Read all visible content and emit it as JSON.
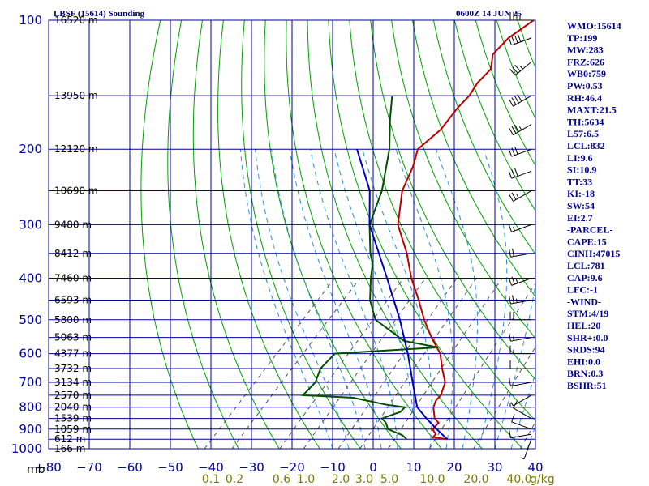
{
  "title_left": "LBSF (15614) Sounding",
  "title_right": "0600Z 14 JUN 25",
  "pressure_unit": "mb",
  "mixing_ratio_unit": "g/kg",
  "colors": {
    "grid": "#0000a0",
    "dry_adiabat": "#00a000",
    "moist_adiabat": "#2a8fd0",
    "mixing_ratio": "#505050",
    "temperature": "#c00000",
    "dewpoint": "#005000",
    "parcel": "#0000c0",
    "wind_barb": "#000000",
    "index_text": "#000090"
  },
  "chart_data": {
    "type": "line",
    "subtype": "skew-t log-p sounding",
    "title": "LBSF (15614) Sounding",
    "time": "0600Z 14 JUN 25",
    "y_axis": {
      "label": "mb",
      "scale": "log",
      "range": [
        1000,
        100
      ],
      "ticks": [
        100,
        200,
        300,
        400,
        500,
        600,
        700,
        800,
        900,
        1000
      ]
    },
    "x_axis": {
      "label": "",
      "range": [
        -80,
        40
      ],
      "ticks": [
        -80,
        -70,
        -60,
        -50,
        -40,
        -30,
        -20,
        -10,
        0,
        10,
        20,
        30,
        40
      ],
      "skewed": true
    },
    "height_labels": [
      {
        "p": 100,
        "label": "16520 m"
      },
      {
        "p": 150,
        "label": "13950 m"
      },
      {
        "p": 200,
        "label": "12120 m"
      },
      {
        "p": 250,
        "label": "10690 m"
      },
      {
        "p": 300,
        "label": "9480 m"
      },
      {
        "p": 350,
        "label": "8412 m"
      },
      {
        "p": 400,
        "label": "7460 m"
      },
      {
        "p": 450,
        "label": "6593 m"
      },
      {
        "p": 500,
        "label": "5800 m"
      },
      {
        "p": 550,
        "label": "5063 m"
      },
      {
        "p": 600,
        "label": "4377 m"
      },
      {
        "p": 650,
        "label": "3732 m"
      },
      {
        "p": 700,
        "label": "3134 m"
      },
      {
        "p": 750,
        "label": "2570 m"
      },
      {
        "p": 800,
        "label": "2040 m"
      },
      {
        "p": 850,
        "label": "1539 m"
      },
      {
        "p": 900,
        "label": "1059 m"
      },
      {
        "p": 950,
        "label": "612 m"
      },
      {
        "p": 1000,
        "label": "166 m"
      }
    ],
    "mixing_ratio_labels": [
      "0.1",
      "0.2",
      "0.6",
      "1.0",
      "2.0",
      "3.0",
      "5.0",
      "10.0",
      "20.0",
      "40.0"
    ],
    "series": [
      {
        "key": "temperature",
        "points": [
          [
            950,
            16
          ],
          [
            940,
            12
          ],
          [
            925,
            12
          ],
          [
            900,
            10
          ],
          [
            870,
            10
          ],
          [
            850,
            8
          ],
          [
            800,
            5
          ],
          [
            770,
            4
          ],
          [
            750,
            4
          ],
          [
            700,
            2
          ],
          [
            650,
            -2
          ],
          [
            600,
            -6
          ],
          [
            550,
            -12
          ],
          [
            500,
            -18
          ],
          [
            450,
            -24
          ],
          [
            400,
            -31
          ],
          [
            350,
            -38
          ],
          [
            300,
            -47
          ],
          [
            250,
            -54
          ],
          [
            220,
            -57
          ],
          [
            200,
            -60
          ],
          [
            180,
            -59
          ],
          [
            160,
            -60
          ],
          [
            150,
            -60
          ],
          [
            140,
            -61
          ],
          [
            130,
            -61
          ],
          [
            120,
            -64
          ],
          [
            110,
            -64
          ],
          [
            100,
            -62
          ]
        ]
      },
      {
        "key": "dewpoint",
        "points": [
          [
            950,
            6
          ],
          [
            930,
            4
          ],
          [
            900,
            -1
          ],
          [
            870,
            -3
          ],
          [
            850,
            -5
          ],
          [
            820,
            -2
          ],
          [
            800,
            -2
          ],
          [
            790,
            -7
          ],
          [
            760,
            -17
          ],
          [
            750,
            -30
          ],
          [
            700,
            -30
          ],
          [
            650,
            -32
          ],
          [
            600,
            -32
          ],
          [
            580,
            -8
          ],
          [
            560,
            -18
          ],
          [
            500,
            -30
          ],
          [
            450,
            -36
          ],
          [
            400,
            -41
          ],
          [
            370,
            -44
          ],
          [
            350,
            -47
          ],
          [
            300,
            -54
          ],
          [
            250,
            -59
          ],
          [
            200,
            -67
          ],
          [
            170,
            -74
          ],
          [
            150,
            -79
          ]
        ]
      },
      {
        "key": "parcel",
        "points": [
          [
            950,
            16
          ],
          [
            900,
            11
          ],
          [
            850,
            6
          ],
          [
            800,
            1
          ],
          [
            700,
            -6
          ],
          [
            600,
            -14
          ],
          [
            500,
            -24
          ],
          [
            400,
            -37
          ],
          [
            300,
            -54
          ],
          [
            250,
            -62
          ],
          [
            200,
            -75
          ]
        ]
      }
    ],
    "wind_barbs": [
      {
        "p": 950,
        "dir": 200,
        "spd": 5
      },
      {
        "p": 925,
        "dir": 260,
        "spd": 10
      },
      {
        "p": 900,
        "dir": 290,
        "spd": 10
      },
      {
        "p": 850,
        "dir": 300,
        "spd": 10
      },
      {
        "p": 800,
        "dir": 270,
        "spd": 5
      },
      {
        "p": 750,
        "dir": 240,
        "spd": 5
      },
      {
        "p": 700,
        "dir": 260,
        "spd": 10
      },
      {
        "p": 650,
        "dir": 270,
        "spd": 10
      },
      {
        "p": 600,
        "dir": 270,
        "spd": 15
      },
      {
        "p": 550,
        "dir": 260,
        "spd": 15
      },
      {
        "p": 500,
        "dir": 270,
        "spd": 20
      },
      {
        "p": 450,
        "dir": 260,
        "spd": 25
      },
      {
        "p": 400,
        "dir": 250,
        "spd": 25
      },
      {
        "p": 350,
        "dir": 260,
        "spd": 20
      },
      {
        "p": 300,
        "dir": 250,
        "spd": 15
      },
      {
        "p": 250,
        "dir": 240,
        "spd": 25
      },
      {
        "p": 225,
        "dir": 250,
        "spd": 30
      },
      {
        "p": 200,
        "dir": 250,
        "spd": 30
      },
      {
        "p": 175,
        "dir": 240,
        "spd": 35
      },
      {
        "p": 150,
        "dir": 240,
        "spd": 40
      },
      {
        "p": 125,
        "dir": 230,
        "spd": 35
      },
      {
        "p": 110,
        "dir": 250,
        "spd": 40
      },
      {
        "p": 100,
        "dir": 270,
        "spd": 35
      }
    ]
  },
  "indices": [
    "WMO:15614",
    "TP:199",
    "MW:283",
    "FRZ:626",
    "WB0:759",
    "PW:0.53",
    "RH:46.4",
    "MAXT:21.5",
    "TH:5634",
    "L57:6.5",
    "LCL:832",
    "LI:9.6",
    "SI:10.9",
    "TT:33",
    "KI:-18",
    "SW:54",
    "EI:2.7",
    "-PARCEL-",
    "CAPE:15",
    "CINH:47015",
    "LCL:781",
    "CAP:9.6",
    "LFC:-1",
    "-WIND-",
    "STM:4/19",
    "HEL:20",
    "SHR+:0.0",
    "SRDS:94",
    "EHI:0.0",
    "BRN:0.3",
    "BSHR:51"
  ]
}
